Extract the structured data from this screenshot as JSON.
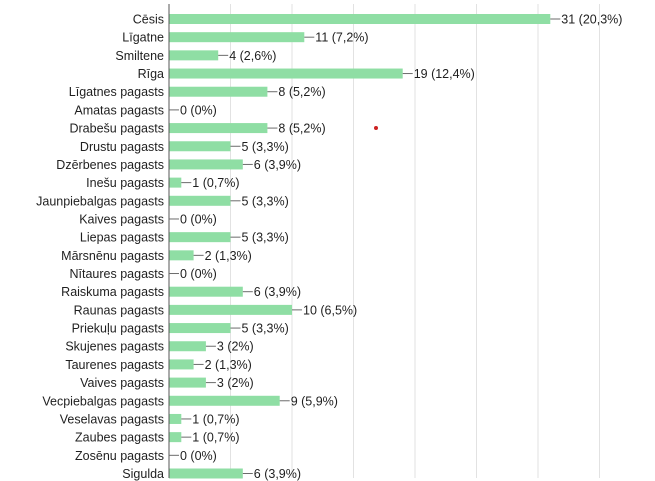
{
  "chart_data": {
    "type": "bar",
    "orientation": "horizontal",
    "grid": true,
    "bar_color": "#8fdea4",
    "grid_color": "#e2e2e2",
    "axis_color": "#555555",
    "marker_color": "#cc2222",
    "categories": [
      "Cēsis",
      "Līgatne",
      "Smiltene",
      "Rīga",
      "Līgatnes pagasts",
      "Amatas pagasts",
      "Drabešu pagasts",
      "Drustu pagasts",
      "Dzērbenes pagasts",
      "Inešu pagasts",
      "Jaunpiebalgas pagasts",
      "Kaives pagasts",
      "Liepas pagasts",
      "Mārsnēnu pagasts",
      "Nītaures pagasts",
      "Raiskuma pagasts",
      "Raunas pagasts",
      "Priekuļu pagasts",
      "Skujenes pagasts",
      "Taurenes pagasts",
      "Vaives pagasts",
      "Vecpiebalgas pagasts",
      "Veselavas pagasts",
      "Zaubes pagasts",
      "Zosēnu pagasts",
      "Sigulda"
    ],
    "values": [
      31,
      11,
      4,
      19,
      8,
      0,
      8,
      5,
      6,
      1,
      5,
      0,
      5,
      2,
      0,
      6,
      10,
      5,
      3,
      2,
      3,
      9,
      1,
      1,
      0,
      6
    ],
    "value_labels": [
      "31 (20,3%)",
      "11 (7,2%)",
      "4 (2,6%)",
      "19 (12,4%)",
      "8 (5,2%)",
      "0 (0%)",
      "8 (5,2%)",
      "5 (3,3%)",
      "6 (3,9%)",
      "1 (0,7%)",
      "5 (3,3%)",
      "0 (0%)",
      "5 (3,3%)",
      "2 (1,3%)",
      "0 (0%)",
      "6 (3,9%)",
      "10 (6,5%)",
      "5 (3,3%)",
      "3 (2%)",
      "2 (1,3%)",
      "3 (2%)",
      "9 (5,9%)",
      "1 (0,7%)",
      "1 (0,7%)",
      "0 (0%)",
      "6 (3,9%)"
    ],
    "xlim": [
      0,
      40
    ]
  }
}
